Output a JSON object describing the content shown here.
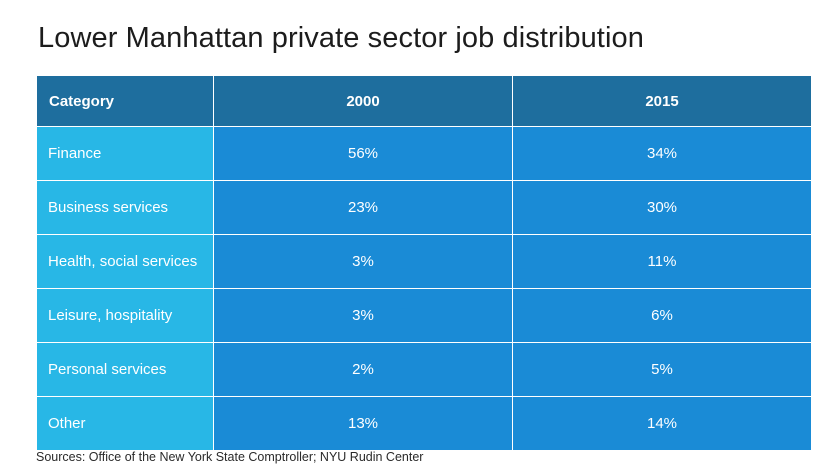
{
  "title": "Lower Manhattan private sector job distribution",
  "source": "Sources: Office of the New York State Comptroller; NYU Rudin Center",
  "colors": {
    "header_bg": "#1e6e9e",
    "category_bg": "#28b7e6",
    "value_bg": "#1a8bd6",
    "text_on_cells": "#ffffff"
  },
  "chart_data": {
    "type": "table",
    "title": "Lower Manhattan private sector job distribution",
    "columns": [
      "Category",
      "2000",
      "2015"
    ],
    "rows": [
      [
        "Finance",
        "56%",
        "34%"
      ],
      [
        "Business services",
        "23%",
        "30%"
      ],
      [
        "Health, social services",
        "3%",
        "11%"
      ],
      [
        "Leisure, hospitality",
        "3%",
        "6%"
      ],
      [
        "Personal services",
        "2%",
        "5%"
      ],
      [
        "Other",
        "13%",
        "14%"
      ]
    ]
  }
}
